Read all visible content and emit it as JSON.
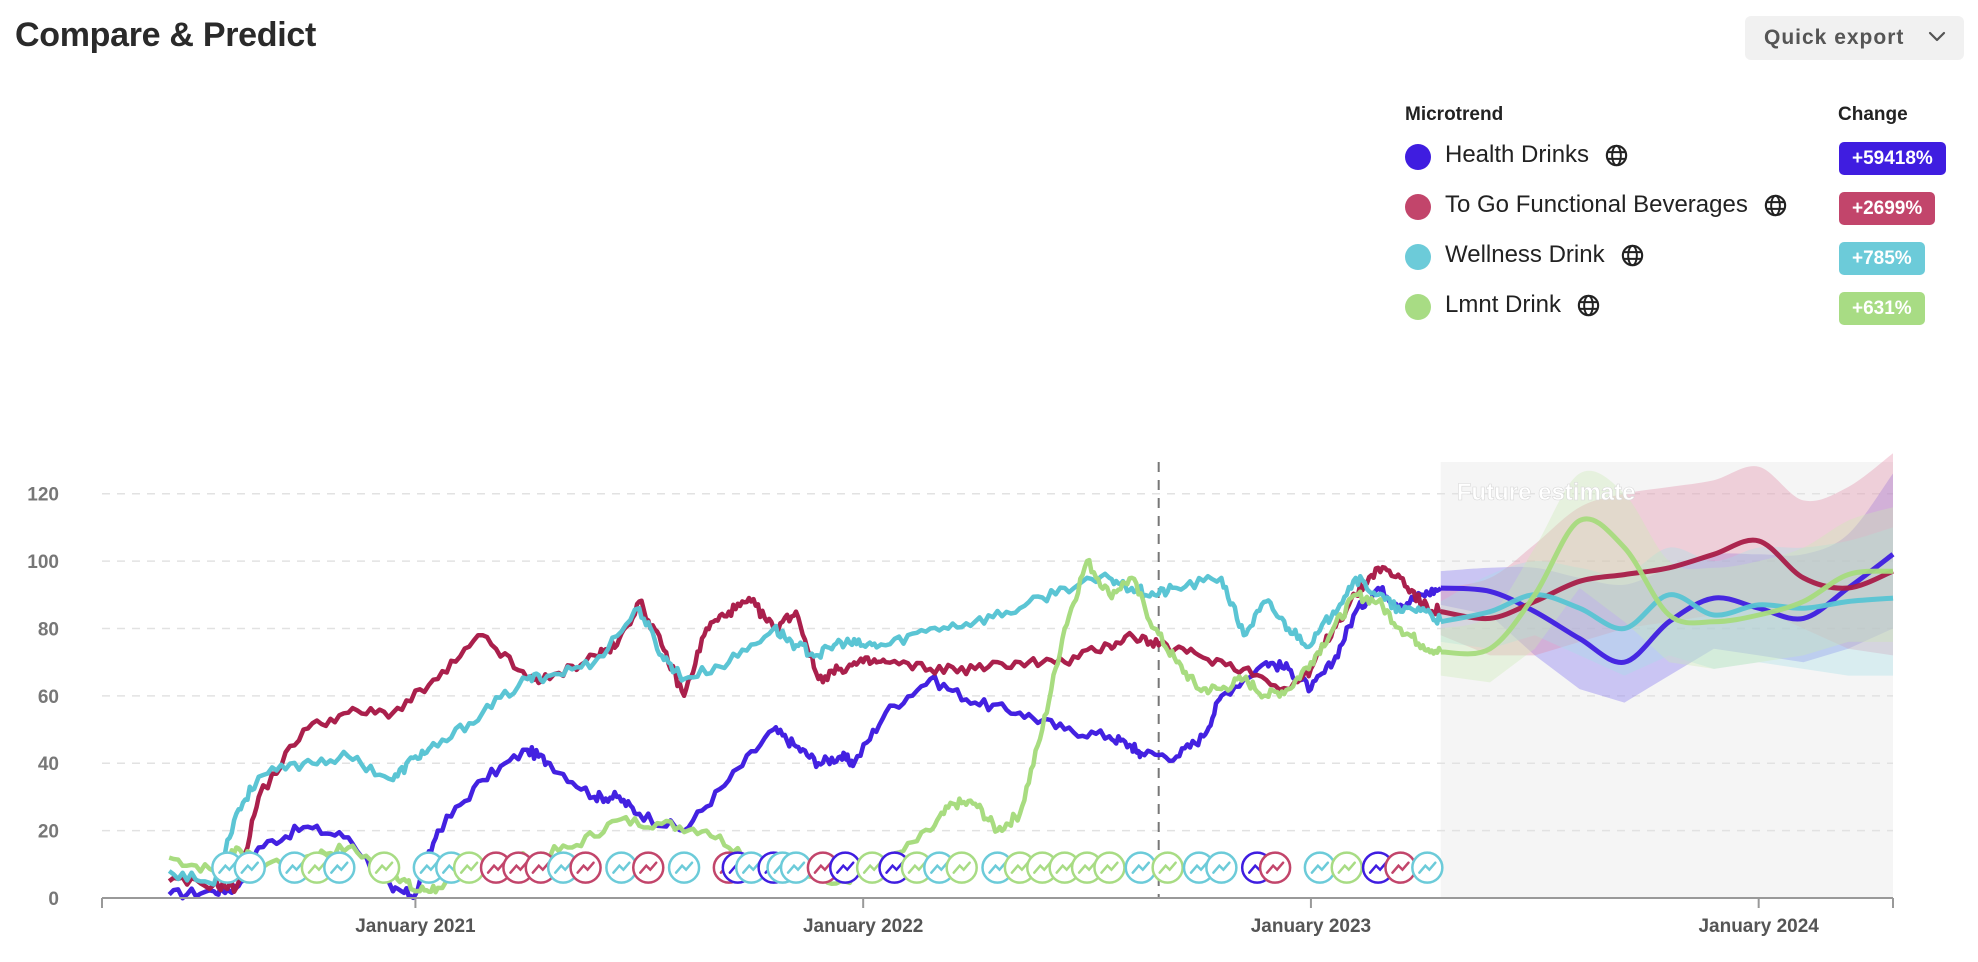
{
  "header": {
    "title": "Compare & Predict",
    "export_label": "Quick export"
  },
  "legend": {
    "col_trend": "Microtrend",
    "col_change": "Change",
    "items": [
      {
        "name": "Health Drinks",
        "change": "+59418%",
        "color": "#3f1de0",
        "icon": "globe-icon"
      },
      {
        "name": "To Go Functional Beverages",
        "change": "+2699%",
        "color": "#c2456b",
        "icon": "globe-icon"
      },
      {
        "name": "Wellness Drink",
        "change": "+785%",
        "color": "#6ccbd9",
        "icon": "globe-icon"
      },
      {
        "name": "Lmnt Drink",
        "change": "+631%",
        "color": "#a8dc84",
        "icon": "globe-icon"
      }
    ]
  },
  "chart_data": {
    "type": "line",
    "ylim": [
      0,
      130
    ],
    "yticks": [
      0,
      20,
      40,
      60,
      80,
      100,
      120
    ],
    "xlim": [
      2020.3,
      2024.3
    ],
    "xticks": [
      {
        "value": 2021.0,
        "label": "January 2021"
      },
      {
        "value": 2022.0,
        "label": "January 2022"
      },
      {
        "value": 2023.0,
        "label": "January 2023"
      },
      {
        "value": 2024.0,
        "label": "January 2024"
      }
    ],
    "grid": true,
    "divider_x": 2022.66,
    "forecast_start": 2023.29,
    "forecast_label": "Future estimate",
    "series": [
      {
        "name": "Health Drinks",
        "color": "#3f1de0",
        "band_color": "#7b6cf0",
        "x": [
          2020.45,
          2020.55,
          2020.6,
          2020.65,
          2020.75,
          2020.85,
          2020.95,
          2021.0,
          2021.05,
          2021.15,
          2021.25,
          2021.3,
          2021.4,
          2021.45,
          2021.5,
          2021.6,
          2021.7,
          2021.8,
          2021.85,
          2021.9,
          2021.95,
          2021.98,
          2022.05,
          2022.15,
          2022.25,
          2022.35,
          2022.45,
          2022.55,
          2022.6,
          2022.62,
          2022.7,
          2022.76,
          2022.8,
          2022.9,
          2022.95,
          2023.0,
          2023.05,
          2023.1,
          2023.15,
          2023.2,
          2023.25,
          2023.29
        ],
        "y": [
          1,
          2,
          3,
          15,
          21,
          18,
          2,
          1,
          20,
          35,
          44,
          40,
          30,
          30,
          25,
          20,
          35,
          50,
          45,
          40,
          42,
          40,
          55,
          65,
          58,
          55,
          50,
          48,
          45,
          43,
          42,
          48,
          60,
          70,
          68,
          62,
          70,
          85,
          92,
          87,
          90,
          92
        ],
        "fx": [
          2023.29,
          2023.4,
          2023.5,
          2023.6,
          2023.7,
          2023.8,
          2023.9,
          2024.0,
          2024.1,
          2024.2,
          2024.3
        ],
        "fy": [
          92,
          91,
          85,
          77,
          70,
          82,
          89,
          86,
          83,
          92,
          102
        ],
        "flo": [
          87,
          84,
          72,
          62,
          58,
          66,
          74,
          72,
          70,
          74,
          80
        ],
        "fhi": [
          97,
          98,
          98,
          95,
          93,
          98,
          102,
          102,
          102,
          108,
          126
        ]
      },
      {
        "name": "To Go Functional Beverages",
        "color": "#a81c48",
        "band_color": "#e28aa6",
        "x": [
          2020.45,
          2020.55,
          2020.6,
          2020.65,
          2020.75,
          2020.85,
          2020.95,
          2021.05,
          2021.15,
          2021.25,
          2021.3,
          2021.4,
          2021.45,
          2021.5,
          2021.55,
          2021.6,
          2021.65,
          2021.7,
          2021.75,
          2021.8,
          2021.85,
          2021.9,
          2021.95,
          2022.0,
          2022.05,
          2022.15,
          2022.25,
          2022.35,
          2022.45,
          2022.55,
          2022.6,
          2022.66,
          2022.75,
          2022.85,
          2022.95,
          2023.0,
          2023.05,
          2023.1,
          2023.15,
          2023.2,
          2023.25,
          2023.29
        ],
        "y": [
          5,
          4,
          3,
          30,
          50,
          55,
          55,
          65,
          78,
          65,
          65,
          72,
          75,
          88,
          75,
          60,
          80,
          85,
          88,
          80,
          85,
          65,
          68,
          70,
          70,
          68,
          68,
          70,
          70,
          75,
          78,
          75,
          72,
          68,
          62,
          68,
          80,
          90,
          98,
          95,
          87,
          85
        ],
        "fx": [
          2023.29,
          2023.4,
          2023.5,
          2023.6,
          2023.7,
          2023.8,
          2023.9,
          2024.0,
          2024.1,
          2024.2,
          2024.3
        ],
        "fy": [
          85,
          83,
          88,
          94,
          96,
          98,
          102,
          106,
          95,
          92,
          97
        ],
        "flo": [
          78,
          72,
          72,
          76,
          80,
          82,
          84,
          86,
          80,
          74,
          72
        ],
        "fhi": [
          92,
          95,
          105,
          116,
          120,
          122,
          124,
          128,
          118,
          122,
          132
        ]
      },
      {
        "name": "Wellness Drink",
        "color": "#58c4d3",
        "band_color": "#a7e0e8",
        "x": [
          2020.45,
          2020.55,
          2020.6,
          2020.65,
          2020.75,
          2020.85,
          2020.95,
          2021.0,
          2021.05,
          2021.15,
          2021.25,
          2021.3,
          2021.4,
          2021.5,
          2021.55,
          2021.6,
          2021.7,
          2021.8,
          2021.85,
          2021.9,
          2021.95,
          2022.0,
          2022.05,
          2022.15,
          2022.25,
          2022.35,
          2022.45,
          2022.55,
          2022.6,
          2022.65,
          2022.7,
          2022.8,
          2022.85,
          2022.9,
          2022.95,
          2023.0,
          2023.05,
          2023.1,
          2023.15,
          2023.2,
          2023.25,
          2023.29
        ],
        "y": [
          8,
          4,
          25,
          36,
          40,
          42,
          35,
          42,
          45,
          55,
          65,
          66,
          70,
          86,
          72,
          65,
          70,
          80,
          75,
          72,
          76,
          75,
          75,
          80,
          82,
          86,
          92,
          95,
          92,
          90,
          92,
          95,
          78,
          88,
          80,
          75,
          85,
          95,
          90,
          85,
          86,
          82
        ],
        "fx": [
          2023.29,
          2023.4,
          2023.5,
          2023.6,
          2023.7,
          2023.8,
          2023.9,
          2024.0,
          2024.1,
          2024.2,
          2024.3
        ],
        "fy": [
          82,
          85,
          90,
          86,
          80,
          90,
          84,
          87,
          86,
          88,
          89
        ],
        "flo": [
          76,
          74,
          78,
          72,
          66,
          72,
          68,
          70,
          68,
          66,
          66
        ],
        "fhi": [
          88,
          96,
          100,
          98,
          96,
          104,
          100,
          104,
          104,
          106,
          110
        ]
      },
      {
        "name": "Lmnt Drink",
        "color": "#a6db7d",
        "band_color": "#cbeab4",
        "x": [
          2020.45,
          2020.55,
          2020.6,
          2020.65,
          2020.75,
          2020.85,
          2020.95,
          2021.0,
          2021.05,
          2021.15,
          2021.25,
          2021.35,
          2021.45,
          2021.55,
          2021.65,
          2021.75,
          2021.85,
          2021.95,
          2022.05,
          2022.15,
          2022.2,
          2022.25,
          2022.3,
          2022.35,
          2022.4,
          2022.45,
          2022.5,
          2022.55,
          2022.6,
          2022.65,
          2022.7,
          2022.75,
          2022.8,
          2022.85,
          2022.9,
          2022.95,
          2023.0,
          2023.05,
          2023.1,
          2023.15,
          2023.2,
          2023.25,
          2023.29
        ],
        "y": [
          12,
          8,
          15,
          10,
          12,
          15,
          8,
          2,
          3,
          10,
          12,
          15,
          23,
          22,
          20,
          12,
          8,
          5,
          10,
          20,
          28,
          28,
          20,
          25,
          50,
          80,
          100,
          90,
          95,
          80,
          70,
          62,
          62,
          65,
          60,
          62,
          70,
          80,
          90,
          88,
          80,
          75,
          73
        ],
        "fx": [
          2023.29,
          2023.4,
          2023.5,
          2023.6,
          2023.7,
          2023.8,
          2023.9,
          2024.0,
          2024.1,
          2024.2,
          2024.3
        ],
        "fy": [
          73,
          74,
          90,
          112,
          104,
          84,
          82,
          84,
          88,
          96,
          97
        ],
        "flo": [
          66,
          64,
          74,
          92,
          82,
          70,
          68,
          70,
          72,
          76,
          76
        ],
        "fhi": [
          80,
          84,
          104,
          126,
          120,
          100,
          98,
          100,
          104,
          112,
          116
        ]
      }
    ],
    "markers": [
      {
        "x": 2020.58,
        "s": 2
      },
      {
        "x": 2020.63,
        "s": 2
      },
      {
        "x": 2020.73,
        "s": 2
      },
      {
        "x": 2020.78,
        "s": 3
      },
      {
        "x": 2020.83,
        "s": 2
      },
      {
        "x": 2020.93,
        "s": 3
      },
      {
        "x": 2021.03,
        "s": 2
      },
      {
        "x": 2021.08,
        "s": 2
      },
      {
        "x": 2021.12,
        "s": 3
      },
      {
        "x": 2021.18,
        "s": 1
      },
      {
        "x": 2021.23,
        "s": 1
      },
      {
        "x": 2021.28,
        "s": 1
      },
      {
        "x": 2021.33,
        "s": 2
      },
      {
        "x": 2021.38,
        "s": 1
      },
      {
        "x": 2021.46,
        "s": 2
      },
      {
        "x": 2021.52,
        "s": 1
      },
      {
        "x": 2021.6,
        "s": 2
      },
      {
        "x": 2021.7,
        "s": 1
      },
      {
        "x": 2021.72,
        "s": 0
      },
      {
        "x": 2021.75,
        "s": 2
      },
      {
        "x": 2021.8,
        "s": 0
      },
      {
        "x": 2021.82,
        "s": 2
      },
      {
        "x": 2021.85,
        "s": 2
      },
      {
        "x": 2021.91,
        "s": 1
      },
      {
        "x": 2021.96,
        "s": 0
      },
      {
        "x": 2022.02,
        "s": 3
      },
      {
        "x": 2022.07,
        "s": 0
      },
      {
        "x": 2022.12,
        "s": 3
      },
      {
        "x": 2022.17,
        "s": 2
      },
      {
        "x": 2022.22,
        "s": 3
      },
      {
        "x": 2022.3,
        "s": 2
      },
      {
        "x": 2022.35,
        "s": 3
      },
      {
        "x": 2022.4,
        "s": 3
      },
      {
        "x": 2022.45,
        "s": 3
      },
      {
        "x": 2022.5,
        "s": 3
      },
      {
        "x": 2022.55,
        "s": 3
      },
      {
        "x": 2022.62,
        "s": 2
      },
      {
        "x": 2022.68,
        "s": 3
      },
      {
        "x": 2022.75,
        "s": 2
      },
      {
        "x": 2022.8,
        "s": 2
      },
      {
        "x": 2022.88,
        "s": 0
      },
      {
        "x": 2022.92,
        "s": 1
      },
      {
        "x": 2023.02,
        "s": 2
      },
      {
        "x": 2023.08,
        "s": 3
      },
      {
        "x": 2023.15,
        "s": 0
      },
      {
        "x": 2023.2,
        "s": 1
      },
      {
        "x": 2023.26,
        "s": 2
      }
    ]
  }
}
